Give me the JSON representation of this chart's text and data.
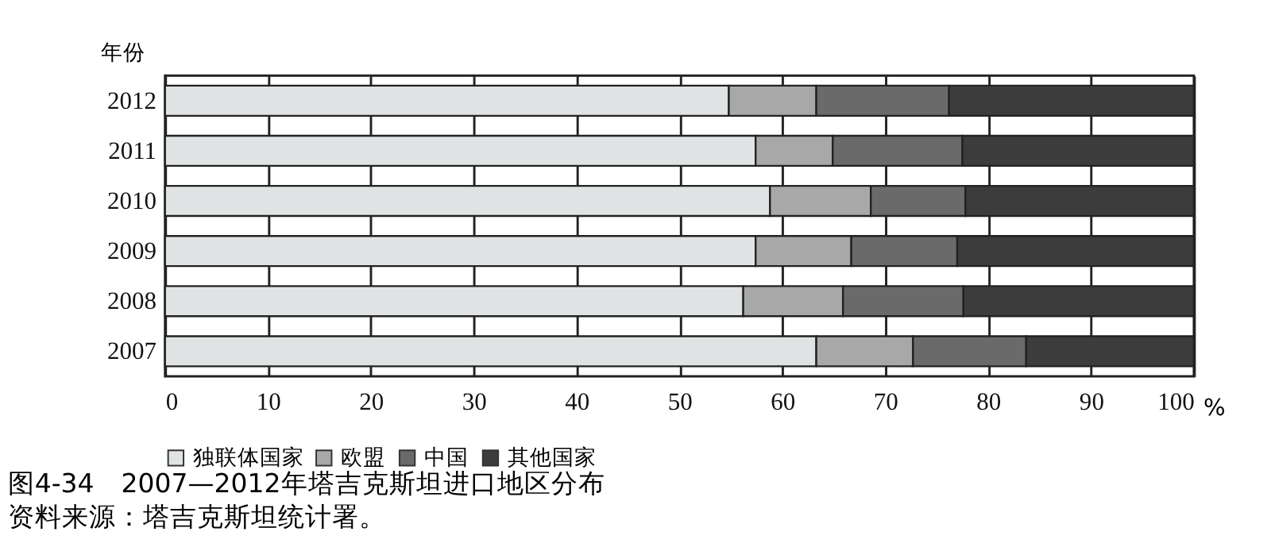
{
  "chart_data": {
    "type": "bar",
    "orientation": "horizontal",
    "stacked": true,
    "ylabel": "年份",
    "xlabel": "%",
    "categories": [
      "2012",
      "2011",
      "2010",
      "2009",
      "2008",
      "2007"
    ],
    "series": [
      {
        "name": "独联体国家",
        "color": "#e0e3e3",
        "values": [
          54.8,
          57.4,
          58.8,
          57.4,
          56.2,
          63.3
        ]
      },
      {
        "name": "欧盟",
        "color": "#a8a8a8",
        "values": [
          8.5,
          7.5,
          9.8,
          9.3,
          9.7,
          9.4
        ]
      },
      {
        "name": "中国",
        "color": "#6a6a6a",
        "values": [
          12.9,
          12.6,
          9.2,
          10.3,
          11.7,
          11.0
        ]
      },
      {
        "name": "其他国家",
        "color": "#3c3c3c",
        "values": [
          23.8,
          22.5,
          22.2,
          23.0,
          22.4,
          16.3
        ]
      }
    ],
    "xlim": [
      0,
      100
    ],
    "xticks": [
      0,
      10,
      20,
      30,
      40,
      50,
      60,
      70,
      80,
      90,
      100
    ],
    "grid": "x",
    "legend": "bottom",
    "annotations": [
      "图4-34　2007—2012年塔吉克斯坦进口地区分布",
      "资料来源：塔吉克斯坦统计署。"
    ]
  }
}
